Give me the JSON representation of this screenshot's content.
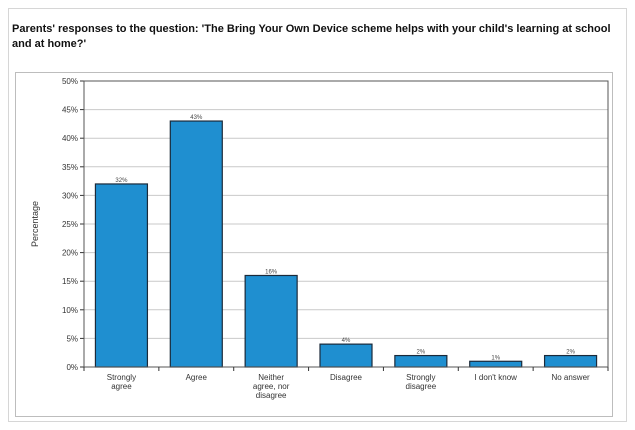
{
  "chart_data": {
    "type": "bar",
    "title": "Parents' responses to the question: 'The Bring Your Own Device scheme helps with your child's learning at school and at home?'",
    "ylabel": "Percentage",
    "xlabel": "",
    "categories": [
      [
        "Strongly",
        "agree"
      ],
      [
        "Agree"
      ],
      [
        "Neither",
        "agree, nor",
        "disagree"
      ],
      [
        "Disagree"
      ],
      [
        "Strongly",
        "disagree"
      ],
      [
        "I don't know"
      ],
      [
        "No answer"
      ]
    ],
    "values": [
      32,
      43,
      16,
      4,
      2,
      1,
      2
    ],
    "data_labels": [
      "32%",
      "43%",
      "16%",
      "4%",
      "2%",
      "1%",
      "2%"
    ],
    "ylim": [
      0,
      50
    ],
    "yticks": [
      "0%",
      "5%",
      "10%",
      "15%",
      "20%",
      "25%",
      "30%",
      "35%",
      "40%",
      "45%",
      "50%"
    ],
    "grid": true,
    "colors": {
      "bar": "#1f8fd0",
      "bar_edge": "#1b2a3a",
      "grid": "#c9c9c9"
    }
  }
}
